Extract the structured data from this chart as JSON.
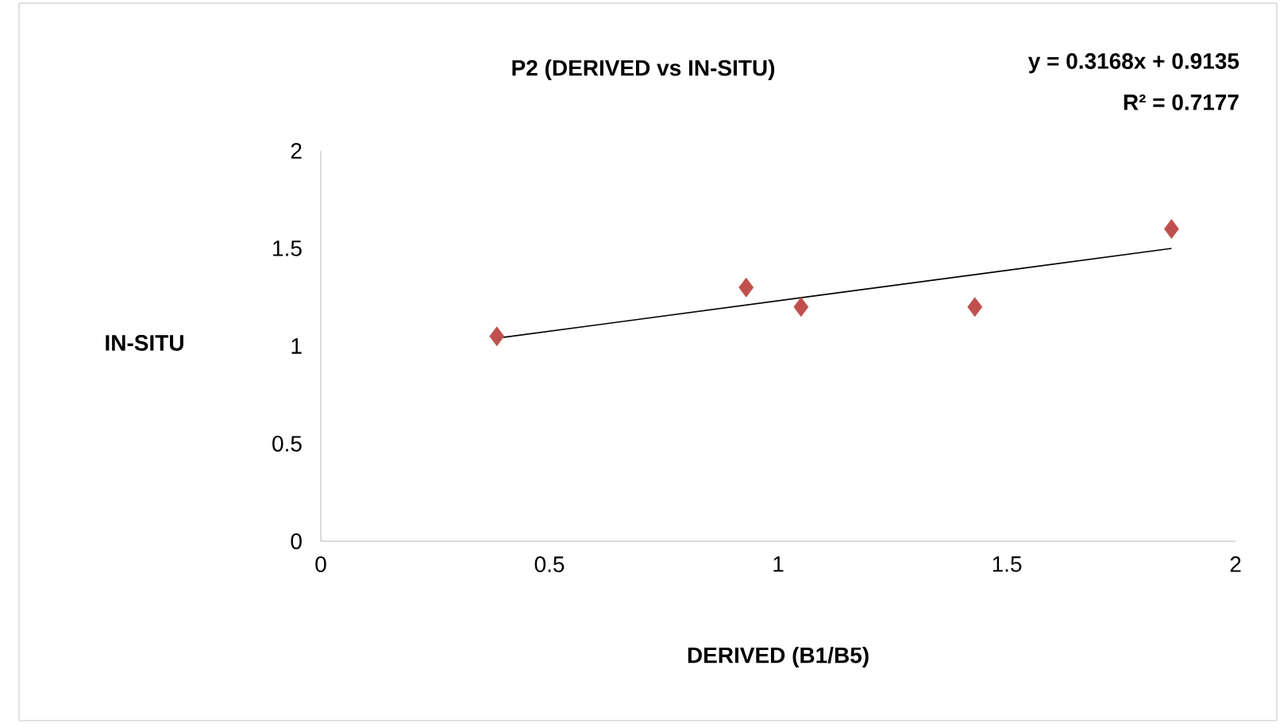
{
  "chart_data": {
    "type": "scatter",
    "title": "P2 (DERIVED vs IN-SITU)",
    "xlabel": "DERIVED  (B1/B5)",
    "ylabel": "IN-SITU",
    "annotations": [
      "y = 0.3168x + 0.9135",
      "R² = 0.7177"
    ],
    "xlim": [
      0,
      2
    ],
    "ylim": [
      0,
      2
    ],
    "xticks": [
      0,
      0.5,
      1,
      1.5,
      2
    ],
    "yticks": [
      0,
      0.5,
      1,
      1.5,
      2
    ],
    "grid": false,
    "marker": "diamond",
    "series": [
      {
        "color": "#c0504d",
        "x": [
          0.385,
          0.93,
          1.05,
          1.43,
          1.86
        ],
        "values": [
          1.05,
          1.3,
          1.2,
          1.2,
          1.6
        ]
      },
      {
        "type": "line",
        "color": "#000000",
        "marker": "none",
        "x": [
          0.385,
          1.86
        ],
        "values": [
          1.04,
          1.5
        ]
      }
    ]
  }
}
